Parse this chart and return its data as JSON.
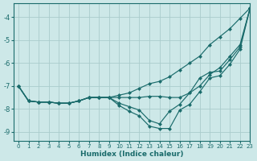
{
  "xlabel": "Humidex (Indice chaleur)",
  "xlim": [
    -0.5,
    23
  ],
  "ylim": [
    -9.4,
    -3.4
  ],
  "bg_color": "#cde8e8",
  "grid_color": "#aacccc",
  "line_color": "#1a6b6b",
  "x_ticks": [
    0,
    1,
    2,
    3,
    4,
    5,
    6,
    7,
    8,
    9,
    10,
    11,
    12,
    13,
    14,
    15,
    16,
    17,
    18,
    19,
    20,
    21,
    22,
    23
  ],
  "y_ticks": [
    -9,
    -8,
    -7,
    -6,
    -5,
    -4
  ],
  "line1_x": [
    0,
    1,
    2,
    3,
    4,
    5,
    6,
    7,
    8,
    9,
    10,
    11,
    12,
    13,
    14,
    15,
    16,
    17,
    18,
    19,
    20,
    21,
    22,
    23
  ],
  "line1_y": [
    -7.0,
    -7.65,
    -7.7,
    -7.7,
    -7.75,
    -7.75,
    -7.65,
    -7.5,
    -7.5,
    -7.5,
    -7.4,
    -7.3,
    -7.1,
    -6.9,
    -6.8,
    -6.6,
    -6.3,
    -6.0,
    -5.7,
    -5.2,
    -4.85,
    -4.5,
    -4.05,
    -3.6
  ],
  "line2_x": [
    0,
    1,
    2,
    3,
    4,
    5,
    6,
    7,
    8,
    9,
    10,
    11,
    12,
    13,
    14,
    15,
    16,
    17,
    18,
    19,
    20,
    21,
    22,
    23
  ],
  "line2_y": [
    -7.0,
    -7.65,
    -7.7,
    -7.7,
    -7.75,
    -7.75,
    -7.65,
    -7.5,
    -7.5,
    -7.5,
    -7.5,
    -7.5,
    -7.5,
    -7.45,
    -7.45,
    -7.5,
    -7.5,
    -7.3,
    -7.0,
    -6.5,
    -6.2,
    -5.7,
    -5.2,
    -3.6
  ],
  "line3_x": [
    0,
    1,
    2,
    3,
    4,
    5,
    6,
    7,
    8,
    9,
    10,
    11,
    12,
    13,
    14,
    15,
    16,
    17,
    18,
    19,
    20,
    21,
    22,
    23
  ],
  "line3_y": [
    -7.0,
    -7.65,
    -7.7,
    -7.7,
    -7.75,
    -7.75,
    -7.65,
    -7.5,
    -7.5,
    -7.5,
    -7.75,
    -7.9,
    -8.05,
    -8.5,
    -8.65,
    -8.1,
    -7.8,
    -7.3,
    -6.65,
    -6.4,
    -6.35,
    -5.85,
    -5.3,
    -3.6
  ],
  "line4_x": [
    0,
    1,
    2,
    3,
    4,
    5,
    6,
    7,
    8,
    9,
    10,
    11,
    12,
    13,
    14,
    15,
    16,
    17,
    18,
    19,
    20,
    21,
    22,
    23
  ],
  "line4_y": [
    -7.0,
    -7.65,
    -7.7,
    -7.7,
    -7.75,
    -7.75,
    -7.65,
    -7.5,
    -7.5,
    -7.5,
    -7.85,
    -8.1,
    -8.3,
    -8.75,
    -8.85,
    -8.85,
    -8.05,
    -7.8,
    -7.25,
    -6.65,
    -6.55,
    -6.05,
    -5.4,
    -3.6
  ]
}
